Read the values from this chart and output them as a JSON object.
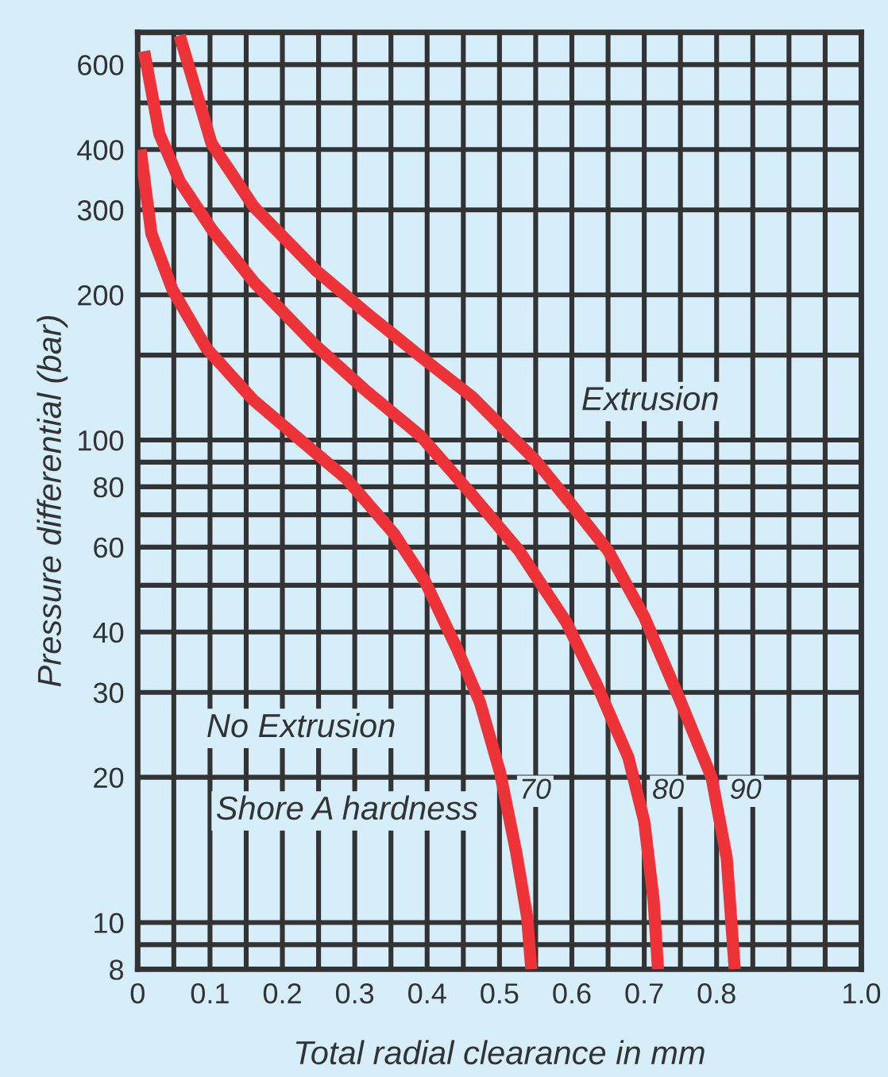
{
  "chart_data": {
    "type": "line",
    "xlabel": "Total radial clearance in mm",
    "ylabel": "Pressure differential (bar)",
    "log": "y",
    "grid": true,
    "legend": false,
    "marker": "none",
    "line_style": "solid",
    "xlim": [
      0,
      1
    ],
    "ylim": [
      8,
      700
    ],
    "xticks": [
      0,
      {
        "value": 0.05,
        "label": null
      },
      0.1,
      {
        "value": 0.15,
        "label": null
      },
      0.2,
      {
        "value": 0.25,
        "label": null
      },
      0.3,
      {
        "value": 0.35,
        "label": null
      },
      0.4,
      {
        "value": 0.45,
        "label": null
      },
      0.5,
      {
        "value": 0.55,
        "label": null
      },
      0.6,
      {
        "value": 0.65,
        "label": null
      },
      0.7,
      {
        "value": 0.75,
        "label": null
      },
      0.8,
      {
        "value": 0.85,
        "label": null
      },
      {
        "value": 0.9,
        "label": null
      },
      {
        "value": 0.95,
        "label": null
      },
      {
        "value": 1,
        "label": "1.0"
      }
    ],
    "yticks": [
      8,
      {
        "value": 9,
        "label": null
      },
      10,
      20,
      30,
      40,
      {
        "value": 50,
        "label": null
      },
      60,
      {
        "value": 70,
        "label": null
      },
      80,
      {
        "value": 90,
        "label": null
      },
      100,
      {
        "value": 150,
        "label": null
      },
      200,
      300,
      400,
      {
        "value": 500,
        "label": null
      },
      600
    ],
    "series": [
      {
        "name": "70",
        "color": "#ee3338",
        "x": [
          0.004,
          0.019,
          0.048,
          0.095,
          0.16,
          0.225,
          0.289,
          0.354,
          0.397,
          0.441,
          0.473,
          0.501,
          0.523,
          0.538,
          0.544
        ],
        "values": [
          400,
          268,
          205,
          155,
          121,
          100,
          83,
          64,
          51,
          37,
          28.6,
          20.4,
          14,
          10.3,
          8
        ]
      },
      {
        "name": "80",
        "color": "#ee3338",
        "x": [
          0.009,
          0.03,
          0.058,
          0.102,
          0.16,
          0.246,
          0.317,
          0.391,
          0.462,
          0.527,
          0.592,
          0.635,
          0.678,
          0.7,
          0.713,
          0.719
        ],
        "values": [
          640,
          431,
          344,
          274,
          213,
          157,
          126,
          102,
          77,
          59,
          42,
          31,
          22,
          16.2,
          11.1,
          8
        ]
      },
      {
        "name": "90",
        "color": "#ee3338",
        "x": [
          0.058,
          0.102,
          0.16,
          0.246,
          0.317,
          0.391,
          0.462,
          0.549,
          0.598,
          0.65,
          0.7,
          0.749,
          0.793,
          0.814,
          0.825
        ],
        "values": [
          690,
          412,
          305,
          225,
          183,
          149,
          123,
          91,
          74,
          59,
          43,
          29,
          20,
          13.6,
          8
        ]
      }
    ],
    "annotations": [
      "Extrusion",
      "No Extrusion",
      "Shore A hardness"
    ]
  }
}
